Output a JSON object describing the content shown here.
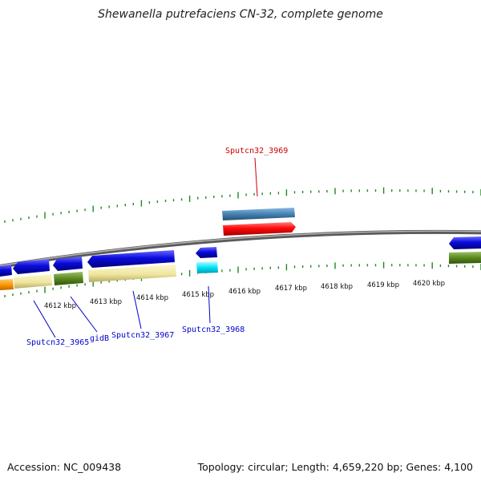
{
  "title": "Shewanella putrefaciens CN-32, complete genome",
  "footer": {
    "accession": "Accession: NC_009438",
    "summary": "Topology: circular; Length: 4,659,220 bp; Genes: 4,100"
  },
  "scale": {
    "tick_labels": [
      "4612 kbp",
      "4613 kbp",
      "4614 kbp",
      "4615 kbp",
      "4616 kbp",
      "4617 kbp",
      "4618 kbp",
      "4619 kbp",
      "4620 kbp"
    ]
  },
  "gene_labels": [
    {
      "name": "Sputcn32_3965",
      "color": "#0000cc"
    },
    {
      "name": "gidB",
      "color": "#0000cc"
    },
    {
      "name": "Sputcn32_3967",
      "color": "#0000cc"
    },
    {
      "name": "Sputcn32_3968",
      "color": "#0000cc"
    },
    {
      "name": "Sputcn32_3969",
      "color": "#cc0000"
    }
  ],
  "colors": {
    "backbone": "#8a8a8a",
    "tick": "#1d8a1d",
    "gene_blue": "#0b0bdc",
    "gene_red": "#ff0a0a",
    "gene_steel": "#4682b4",
    "gene_cyan": "#00e5ff",
    "gene_yellow": "#f0e6a0",
    "gene_olive": "#5a8a1e",
    "gene_orange": "#ff9900"
  }
}
